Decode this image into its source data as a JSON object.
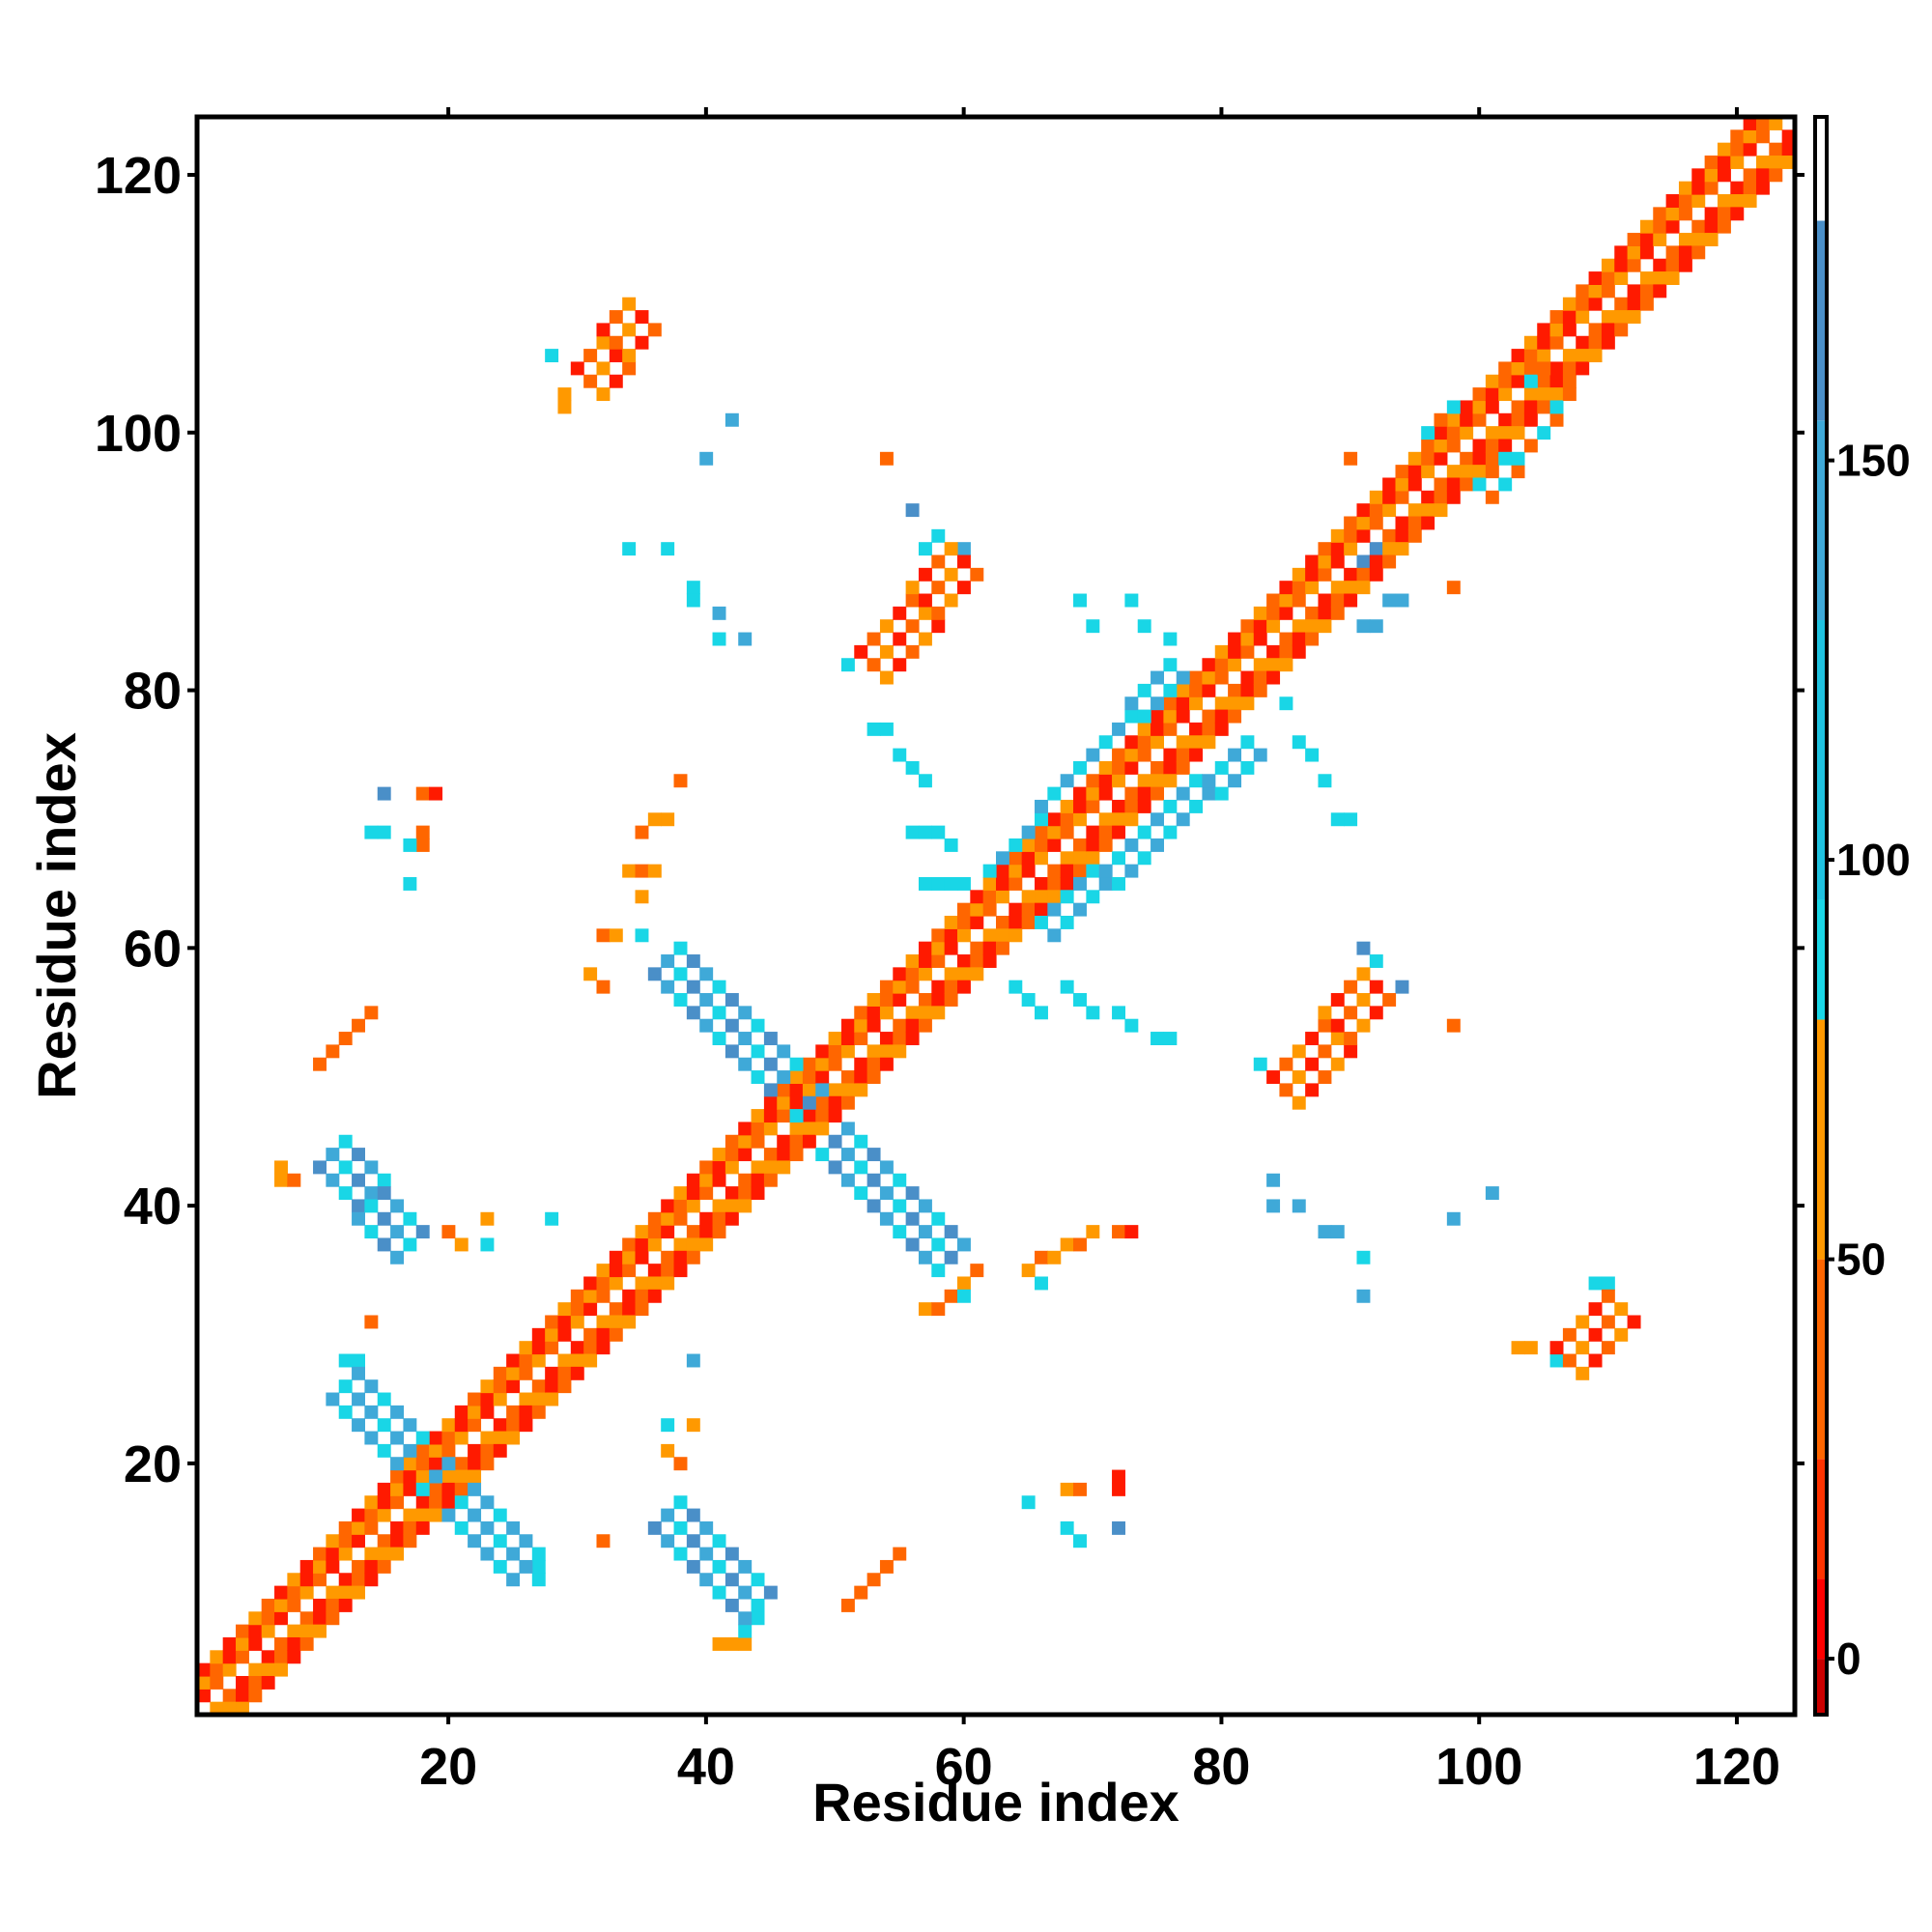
{
  "chart_data": {
    "type": "heatmap",
    "title": "",
    "xlabel": "Residue index",
    "ylabel": "Residue index",
    "xlim": [
      1,
      124
    ],
    "ylim": [
      1,
      124
    ],
    "x_ticks": [
      20,
      40,
      60,
      80,
      100,
      120
    ],
    "y_ticks": [
      20,
      40,
      60,
      80,
      100,
      120
    ],
    "grid": false,
    "legend": "colorbar-right",
    "colorbar": {
      "ticks": [
        0,
        50,
        100,
        150
      ],
      "range": [
        -7,
        193
      ],
      "bands": [
        {
          "from": -7,
          "to": 0,
          "color": "#cc0000"
        },
        {
          "from": 0,
          "to": 25,
          "color": "#ff1a00"
        },
        {
          "from": 25,
          "to": 50,
          "color": "#ff6600"
        },
        {
          "from": 50,
          "to": 80,
          "color": "#ff9900"
        },
        {
          "from": 80,
          "to": 95,
          "color": "#19d6e6"
        },
        {
          "from": 95,
          "to": 180,
          "color": "#3fa9d8"
        },
        {
          "from": 180,
          "to": 193,
          "color": "#ffffff"
        }
      ],
      "band_colors_display": [
        "#cc0000",
        "#ff1a00",
        "#ff6600",
        "#ff9900",
        "#19d6e6",
        "#1fc2e0",
        "#3fa9d8",
        "#4a8fc8",
        "#4f7fb8",
        "#ffffff"
      ]
    },
    "value_colors": {
      "red": "#ff1a00",
      "orange_red": "#ff6600",
      "orange": "#ff9900",
      "cyan": "#19d6e6",
      "light_blue": "#3fa9d8",
      "steel_blue": "#4a8fc8"
    },
    "contacts": {
      "description_note": "",
      "diagonal_band_offset": [
        1,
        3
      ],
      "segments": [
        {
          "x0": 1,
          "y0": 1,
          "x1": 124,
          "y1": 124,
          "offsets": [
            1,
            -1,
            2,
            -2,
            3,
            -3
          ],
          "palette": [
            "red",
            "orange_red",
            "orange",
            "orange_red",
            "red",
            "orange"
          ]
        },
        {
          "x0": 10,
          "y0": 43,
          "x1": 16,
          "y1": 36,
          "width": 3,
          "palette": [
            "steel_blue",
            "light_blue",
            "cyan"
          ]
        },
        {
          "x0": 36,
          "y0": 58,
          "x1": 58,
          "y1": 35,
          "width": 3,
          "palette": [
            "steel_blue",
            "light_blue",
            "cyan"
          ]
        },
        {
          "x0": 11,
          "y0": 25,
          "x1": 25,
          "y1": 11,
          "width": 3,
          "palette": [
            "light_blue",
            "cyan",
            "light_blue"
          ]
        },
        {
          "x0": 36,
          "y0": 15,
          "x1": 43,
          "y1": 8,
          "width": 3,
          "palette": [
            "steel_blue",
            "light_blue",
            "cyan"
          ]
        },
        {
          "x0": 52,
          "y0": 83,
          "x1": 59,
          "y1": 91,
          "width": 3,
          "palette": [
            "red",
            "orange_red",
            "orange"
          ]
        },
        {
          "x0": 84,
          "y0": 50,
          "x1": 91,
          "y1": 58,
          "width": 3,
          "palette": [
            "red",
            "orange_red",
            "orange"
          ]
        },
        {
          "x0": 30,
          "y0": 105,
          "x1": 34,
          "y1": 110,
          "width": 3,
          "palette": [
            "red",
            "orange_red",
            "orange"
          ]
        },
        {
          "x0": 106,
          "y0": 29,
          "x1": 110,
          "y1": 33,
          "width": 3,
          "palette": [
            "red",
            "orange_red",
            "orange"
          ]
        },
        {
          "x0": 62,
          "y0": 66,
          "x1": 76,
          "y1": 82,
          "width": 2,
          "palette": [
            "cyan",
            "light_blue"
          ]
        },
        {
          "x0": 66,
          "y0": 62,
          "x1": 82,
          "y1": 76,
          "width": 2,
          "palette": [
            "cyan",
            "light_blue"
          ]
        },
        {
          "x0": 96,
          "y0": 100,
          "x1": 104,
          "y1": 106,
          "width": 2,
          "palette": [
            "cyan",
            "orange_red"
          ]
        },
        {
          "x0": 100,
          "y0": 96,
          "x1": 106,
          "y1": 104,
          "width": 2,
          "palette": [
            "cyan",
            "orange_red"
          ]
        }
      ],
      "points": [
        {
          "x": 15,
          "y": 72,
          "c": "steel_blue"
        },
        {
          "x": 18,
          "y": 72,
          "c": "orange_red"
        },
        {
          "x": 19,
          "y": 72,
          "c": "red"
        },
        {
          "x": 14,
          "y": 69,
          "c": "cyan"
        },
        {
          "x": 15,
          "y": 69,
          "c": "cyan"
        },
        {
          "x": 18,
          "y": 69,
          "c": "orange_red"
        },
        {
          "x": 18,
          "y": 68,
          "c": "orange_red"
        },
        {
          "x": 17,
          "y": 68,
          "c": "cyan"
        },
        {
          "x": 17,
          "y": 65,
          "c": "cyan"
        },
        {
          "x": 10,
          "y": 51,
          "c": "orange_red"
        },
        {
          "x": 11,
          "y": 52,
          "c": "orange_red"
        },
        {
          "x": 12,
          "y": 53,
          "c": "orange_red"
        },
        {
          "x": 13,
          "y": 54,
          "c": "orange_red"
        },
        {
          "x": 14,
          "y": 55,
          "c": "orange_red"
        },
        {
          "x": 7,
          "y": 42,
          "c": "orange"
        },
        {
          "x": 7,
          "y": 43,
          "c": "orange"
        },
        {
          "x": 8,
          "y": 42,
          "c": "orange_red"
        },
        {
          "x": 20,
          "y": 38,
          "c": "orange_red"
        },
        {
          "x": 21,
          "y": 37,
          "c": "orange"
        },
        {
          "x": 23,
          "y": 37,
          "c": "cyan"
        },
        {
          "x": 23,
          "y": 39,
          "c": "orange"
        },
        {
          "x": 28,
          "y": 39,
          "c": "cyan"
        },
        {
          "x": 14,
          "y": 31,
          "c": "orange_red"
        },
        {
          "x": 12,
          "y": 28,
          "c": "cyan"
        },
        {
          "x": 13,
          "y": 28,
          "c": "cyan"
        },
        {
          "x": 27,
          "y": 12,
          "c": "cyan"
        },
        {
          "x": 27,
          "y": 11,
          "c": "cyan"
        },
        {
          "x": 32,
          "y": 14,
          "c": "orange_red"
        },
        {
          "x": 37,
          "y": 23,
          "c": "cyan"
        },
        {
          "x": 39,
          "y": 23,
          "c": "orange"
        },
        {
          "x": 37,
          "y": 21,
          "c": "orange"
        },
        {
          "x": 38,
          "y": 20,
          "c": "orange_red"
        },
        {
          "x": 39,
          "y": 28,
          "c": "light_blue"
        },
        {
          "x": 41,
          "y": 6,
          "c": "orange"
        },
        {
          "x": 42,
          "y": 6,
          "c": "orange"
        },
        {
          "x": 43,
          "y": 6,
          "c": "orange"
        },
        {
          "x": 43,
          "y": 7,
          "c": "cyan"
        },
        {
          "x": 44,
          "y": 8,
          "c": "cyan"
        },
        {
          "x": 51,
          "y": 9,
          "c": "orange_red"
        },
        {
          "x": 52,
          "y": 10,
          "c": "orange_red"
        },
        {
          "x": 53,
          "y": 11,
          "c": "orange_red"
        },
        {
          "x": 54,
          "y": 12,
          "c": "orange_red"
        },
        {
          "x": 55,
          "y": 13,
          "c": "orange_red"
        },
        {
          "x": 65,
          "y": 17,
          "c": "cyan"
        },
        {
          "x": 68,
          "y": 18,
          "c": "orange"
        },
        {
          "x": 69,
          "y": 18,
          "c": "orange_red"
        },
        {
          "x": 68,
          "y": 15,
          "c": "cyan"
        },
        {
          "x": 69,
          "y": 14,
          "c": "cyan"
        },
        {
          "x": 72,
          "y": 15,
          "c": "steel_blue"
        },
        {
          "x": 72,
          "y": 19,
          "c": "red"
        },
        {
          "x": 72,
          "y": 18,
          "c": "red"
        },
        {
          "x": 57,
          "y": 32,
          "c": "orange"
        },
        {
          "x": 58,
          "y": 32,
          "c": "orange_red"
        },
        {
          "x": 59,
          "y": 33,
          "c": "orange_red"
        },
        {
          "x": 60,
          "y": 34,
          "c": "orange"
        },
        {
          "x": 61,
          "y": 35,
          "c": "orange_red"
        },
        {
          "x": 60,
          "y": 33,
          "c": "cyan"
        },
        {
          "x": 65,
          "y": 35,
          "c": "orange"
        },
        {
          "x": 66,
          "y": 36,
          "c": "orange_red"
        },
        {
          "x": 67,
          "y": 36,
          "c": "orange"
        },
        {
          "x": 68,
          "y": 37,
          "c": "orange"
        },
        {
          "x": 69,
          "y": 37,
          "c": "orange_red"
        },
        {
          "x": 70,
          "y": 38,
          "c": "orange"
        },
        {
          "x": 72,
          "y": 38,
          "c": "orange_red"
        },
        {
          "x": 73,
          "y": 38,
          "c": "red"
        },
        {
          "x": 66,
          "y": 34,
          "c": "cyan"
        },
        {
          "x": 84,
          "y": 42,
          "c": "light_blue"
        },
        {
          "x": 84,
          "y": 40,
          "c": "light_blue"
        },
        {
          "x": 86,
          "y": 40,
          "c": "light_blue"
        },
        {
          "x": 88,
          "y": 38,
          "c": "light_blue"
        },
        {
          "x": 89,
          "y": 38,
          "c": "light_blue"
        },
        {
          "x": 91,
          "y": 36,
          "c": "cyan"
        },
        {
          "x": 91,
          "y": 33,
          "c": "light_blue"
        },
        {
          "x": 98,
          "y": 39,
          "c": "light_blue"
        },
        {
          "x": 101,
          "y": 41,
          "c": "light_blue"
        },
        {
          "x": 103,
          "y": 29,
          "c": "orange"
        },
        {
          "x": 104,
          "y": 29,
          "c": "orange"
        },
        {
          "x": 106,
          "y": 28,
          "c": "cyan"
        },
        {
          "x": 109,
          "y": 34,
          "c": "cyan"
        },
        {
          "x": 110,
          "y": 34,
          "c": "cyan"
        },
        {
          "x": 64,
          "y": 57,
          "c": "cyan"
        },
        {
          "x": 65,
          "y": 56,
          "c": "cyan"
        },
        {
          "x": 66,
          "y": 55,
          "c": "cyan"
        },
        {
          "x": 68,
          "y": 57,
          "c": "cyan"
        },
        {
          "x": 69,
          "y": 56,
          "c": "cyan"
        },
        {
          "x": 70,
          "y": 55,
          "c": "cyan"
        },
        {
          "x": 72,
          "y": 55,
          "c": "cyan"
        },
        {
          "x": 73,
          "y": 54,
          "c": "cyan"
        },
        {
          "x": 75,
          "y": 53,
          "c": "cyan"
        },
        {
          "x": 76,
          "y": 53,
          "c": "cyan"
        },
        {
          "x": 83,
          "y": 51,
          "c": "cyan"
        },
        {
          "x": 91,
          "y": 60,
          "c": "steel_blue"
        },
        {
          "x": 92,
          "y": 59,
          "c": "cyan"
        },
        {
          "x": 94,
          "y": 57,
          "c": "steel_blue"
        },
        {
          "x": 98,
          "y": 54,
          "c": "orange_red"
        },
        {
          "x": 38,
          "y": 73,
          "c": "orange_red"
        },
        {
          "x": 36,
          "y": 70,
          "c": "orange"
        },
        {
          "x": 37,
          "y": 70,
          "c": "orange"
        },
        {
          "x": 35,
          "y": 69,
          "c": "orange_red"
        },
        {
          "x": 34,
          "y": 66,
          "c": "orange"
        },
        {
          "x": 35,
          "y": 66,
          "c": "orange_red"
        },
        {
          "x": 36,
          "y": 66,
          "c": "orange"
        },
        {
          "x": 35,
          "y": 64,
          "c": "orange"
        },
        {
          "x": 32,
          "y": 61,
          "c": "orange_red"
        },
        {
          "x": 33,
          "y": 61,
          "c": "orange"
        },
        {
          "x": 35,
          "y": 61,
          "c": "cyan"
        },
        {
          "x": 31,
          "y": 58,
          "c": "orange"
        },
        {
          "x": 32,
          "y": 57,
          "c": "orange_red"
        },
        {
          "x": 54,
          "y": 98,
          "c": "orange_red"
        },
        {
          "x": 56,
          "y": 94,
          "c": "steel_blue"
        },
        {
          "x": 57,
          "y": 91,
          "c": "cyan"
        },
        {
          "x": 58,
          "y": 92,
          "c": "cyan"
        },
        {
          "x": 60,
          "y": 91,
          "c": "light_blue"
        },
        {
          "x": 51,
          "y": 82,
          "c": "cyan"
        },
        {
          "x": 42,
          "y": 101,
          "c": "light_blue"
        },
        {
          "x": 40,
          "y": 98,
          "c": "light_blue"
        },
        {
          "x": 34,
          "y": 91,
          "c": "cyan"
        },
        {
          "x": 37,
          "y": 91,
          "c": "cyan"
        },
        {
          "x": 39,
          "y": 88,
          "c": "cyan"
        },
        {
          "x": 39,
          "y": 87,
          "c": "cyan"
        },
        {
          "x": 41,
          "y": 86,
          "c": "light_blue"
        },
        {
          "x": 41,
          "y": 84,
          "c": "cyan"
        },
        {
          "x": 43,
          "y": 84,
          "c": "light_blue"
        },
        {
          "x": 29,
          "y": 102,
          "c": "orange"
        },
        {
          "x": 29,
          "y": 103,
          "c": "orange"
        },
        {
          "x": 28,
          "y": 106,
          "c": "cyan"
        },
        {
          "x": 53,
          "y": 77,
          "c": "cyan"
        },
        {
          "x": 54,
          "y": 77,
          "c": "cyan"
        },
        {
          "x": 55,
          "y": 75,
          "c": "cyan"
        },
        {
          "x": 56,
          "y": 74,
          "c": "cyan"
        },
        {
          "x": 57,
          "y": 73,
          "c": "cyan"
        },
        {
          "x": 56,
          "y": 69,
          "c": "cyan"
        },
        {
          "x": 57,
          "y": 69,
          "c": "cyan"
        },
        {
          "x": 58,
          "y": 69,
          "c": "cyan"
        },
        {
          "x": 59,
          "y": 68,
          "c": "cyan"
        },
        {
          "x": 57,
          "y": 65,
          "c": "cyan"
        },
        {
          "x": 58,
          "y": 65,
          "c": "cyan"
        },
        {
          "x": 59,
          "y": 65,
          "c": "cyan"
        },
        {
          "x": 60,
          "y": 65,
          "c": "cyan"
        },
        {
          "x": 69,
          "y": 87,
          "c": "cyan"
        },
        {
          "x": 70,
          "y": 85,
          "c": "cyan"
        },
        {
          "x": 73,
          "y": 87,
          "c": "cyan"
        },
        {
          "x": 74,
          "y": 85,
          "c": "cyan"
        },
        {
          "x": 76,
          "y": 84,
          "c": "cyan"
        },
        {
          "x": 85,
          "y": 79,
          "c": "cyan"
        },
        {
          "x": 86,
          "y": 76,
          "c": "cyan"
        },
        {
          "x": 87,
          "y": 75,
          "c": "cyan"
        },
        {
          "x": 88,
          "y": 73,
          "c": "cyan"
        },
        {
          "x": 89,
          "y": 70,
          "c": "cyan"
        },
        {
          "x": 90,
          "y": 70,
          "c": "cyan"
        },
        {
          "x": 91,
          "y": 85,
          "c": "light_blue"
        },
        {
          "x": 92,
          "y": 85,
          "c": "light_blue"
        },
        {
          "x": 93,
          "y": 87,
          "c": "light_blue"
        },
        {
          "x": 94,
          "y": 87,
          "c": "light_blue"
        },
        {
          "x": 91,
          "y": 90,
          "c": "steel_blue"
        },
        {
          "x": 92,
          "y": 91,
          "c": "steel_blue"
        },
        {
          "x": 98,
          "y": 88,
          "c": "orange_red"
        },
        {
          "x": 90,
          "y": 98,
          "c": "orange_red"
        }
      ]
    }
  }
}
